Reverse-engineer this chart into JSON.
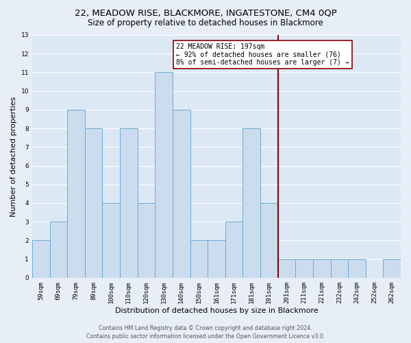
{
  "title": "22, MEADOW RISE, BLACKMORE, INGATESTONE, CM4 0QP",
  "subtitle": "Size of property relative to detached houses in Blackmore",
  "xlabel": "Distribution of detached houses by size in Blackmore",
  "ylabel": "Number of detached properties",
  "categories": [
    "59sqm",
    "69sqm",
    "79sqm",
    "89sqm",
    "100sqm",
    "110sqm",
    "120sqm",
    "130sqm",
    "140sqm",
    "150sqm",
    "161sqm",
    "171sqm",
    "181sqm",
    "191sqm",
    "201sqm",
    "211sqm",
    "221sqm",
    "232sqm",
    "242sqm",
    "252sqm",
    "262sqm"
  ],
  "values": [
    2,
    3,
    9,
    8,
    4,
    8,
    4,
    11,
    9,
    2,
    2,
    3,
    8,
    4,
    1,
    1,
    1,
    1,
    1,
    0,
    1
  ],
  "bar_color": "#ccdcef",
  "bar_edge_color": "#6aaad4",
  "ylim": [
    0,
    13
  ],
  "yticks": [
    0,
    1,
    2,
    3,
    4,
    5,
    6,
    7,
    8,
    9,
    10,
    11,
    12,
    13
  ],
  "vline_color": "#8B0000",
  "vline_x": 13.5,
  "annotation_title": "22 MEADOW RISE: 197sqm",
  "annotation_line1": "← 92% of detached houses are smaller (76)",
  "annotation_line2": "8% of semi-detached houses are larger (7) →",
  "annotation_box_color": "#ffffff",
  "annotation_box_edge": "#8B0000",
  "footer_line1": "Contains HM Land Registry data © Crown copyright and database right 2024.",
  "footer_line2": "Contains public sector information licensed under the Open Government Licence v3.0.",
  "bg_color": "#e8eef8",
  "plot_bg_color": "#dde8f5",
  "grid_color": "#ffffff",
  "title_fontsize": 9.5,
  "subtitle_fontsize": 8.5,
  "axis_label_fontsize": 8,
  "tick_fontsize": 6.5,
  "annotation_fontsize": 7,
  "footer_fontsize": 5.8
}
